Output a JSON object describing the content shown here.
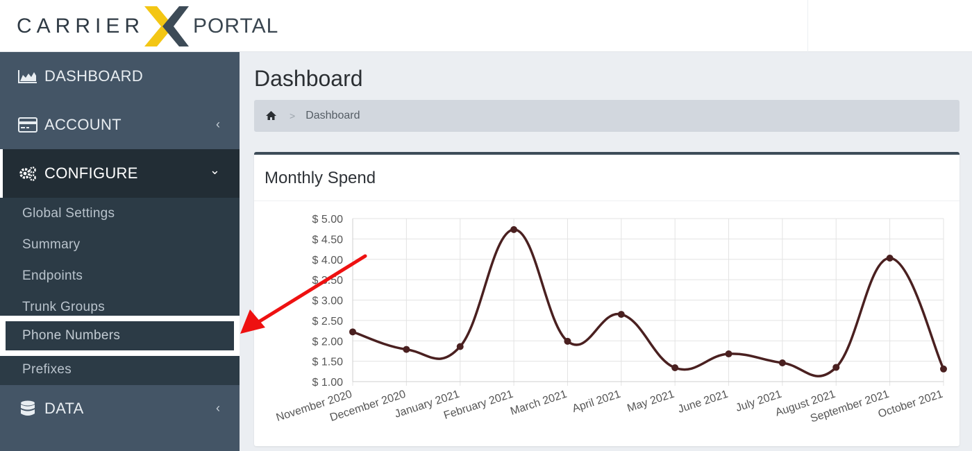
{
  "header": {
    "logo_carrier": "CARRIER",
    "logo_portal": "PORTAL"
  },
  "sidebar": {
    "items": [
      {
        "label": "DASHBOARD",
        "icon": "area-chart-icon"
      },
      {
        "label": "ACCOUNT",
        "icon": "credit-card-icon"
      },
      {
        "label": "CONFIGURE",
        "icon": "gears-icon"
      },
      {
        "label": "DATA",
        "icon": "database-icon"
      }
    ],
    "configure_sub": [
      "Global Settings",
      "Summary",
      "Endpoints",
      "Trunk Groups",
      "Phone Numbers",
      "Prefixes"
    ]
  },
  "page": {
    "title": "Dashboard",
    "breadcrumb_current": "Dashboard"
  },
  "card": {
    "title": "Monthly Spend"
  },
  "colors": {
    "sidebar": "#445566",
    "sidebar_active": "#222d35",
    "submenu": "#2c3b46",
    "line": "#4a2020",
    "logo_yellow": "#f3c614",
    "logo_dark": "#3a4650",
    "arrow": "#ee1111"
  },
  "chart_data": {
    "type": "line",
    "title": "Monthly Spend",
    "categories": [
      "November 2020",
      "December 2020",
      "January 2021",
      "February 2021",
      "March 2021",
      "April 2021",
      "May 2021",
      "June 2021",
      "July 2021",
      "August 2021",
      "September 2021",
      "October 2021"
    ],
    "values": [
      2.22,
      1.79,
      1.86,
      4.73,
      1.99,
      2.65,
      1.34,
      1.68,
      1.46,
      1.35,
      4.03,
      1.31
    ],
    "y_tick_labels": [
      "$ 5.00",
      "$ 4.50",
      "$ 4.00",
      "$ 3.50",
      "$ 3.00",
      "$ 2.50",
      "$ 2.00",
      "$ 1.50",
      "$ 1.00"
    ],
    "ylim": [
      1.0,
      5.0
    ],
    "grid": true,
    "line_style": "smooth"
  }
}
